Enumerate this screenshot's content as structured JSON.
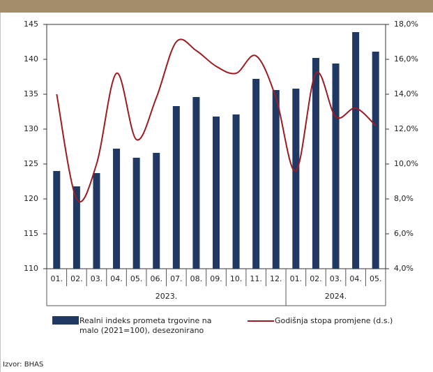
{
  "chart_data": {
    "type": "bar-line",
    "groups": [
      {
        "label": "2023.",
        "categories": [
          "01.",
          "02.",
          "03.",
          "04.",
          "05.",
          "06.",
          "07.",
          "08.",
          "09.",
          "10.",
          "11.",
          "12."
        ]
      },
      {
        "label": "2024.",
        "categories": [
          "01.",
          "02.",
          "03.",
          "04.",
          "05."
        ]
      }
    ],
    "series": [
      {
        "name": "Realni indeks prometa trgovine na malo (2021=100), desezonirano",
        "type": "bar",
        "color": "#1f3864",
        "values": [
          124,
          121.8,
          123.7,
          127.2,
          125.9,
          126.6,
          133.3,
          134.6,
          131.8,
          132.1,
          137.2,
          135.6,
          135.8,
          140.2,
          139.4,
          143.9,
          141.1
        ]
      },
      {
        "name": "Godišnja stopa promjene (d.s.)",
        "type": "line",
        "axis": "y2",
        "color": "#9b1c22",
        "values": [
          14.0,
          8.0,
          10.0,
          15.2,
          11.4,
          13.8,
          17.0,
          16.5,
          15.6,
          15.2,
          16.2,
          13.8,
          9.6,
          15.2,
          12.7,
          13.2,
          12.2
        ]
      }
    ],
    "ylim": [
      110,
      145
    ],
    "yticks": [
      110,
      115,
      120,
      125,
      130,
      135,
      140,
      145
    ],
    "y2lim": [
      4,
      18
    ],
    "y2ticks": [
      {
        "value": 4,
        "label": "4,0%"
      },
      {
        "value": 6,
        "label": "6,0%"
      },
      {
        "value": 8,
        "label": "8,0%"
      },
      {
        "value": 10,
        "label": "10,0%"
      },
      {
        "value": 12,
        "label": "12,0%"
      },
      {
        "value": 14,
        "label": "14,0%"
      },
      {
        "value": 16,
        "label": "16,0%"
      },
      {
        "value": 18,
        "label": "18,0%"
      }
    ],
    "source": "Izvor: BHAS"
  }
}
